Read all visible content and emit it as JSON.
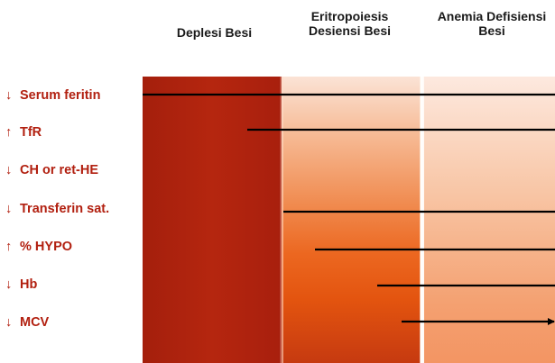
{
  "stages": [
    "Deplesi Besi",
    "Eritropoiesis\nDesiensi Besi",
    "Anemia Defisiensi\nBesi"
  ],
  "markers": [
    {
      "arrow": "↓",
      "label": "Serum feritin"
    },
    {
      "arrow": "↑",
      "label": "TfR"
    },
    {
      "arrow": "↓",
      "label": "CH or ret-HE"
    },
    {
      "arrow": "↓",
      "label": "Transferin sat."
    },
    {
      "arrow": "↑",
      "label": "% HYPO"
    },
    {
      "arrow": "↓",
      "label": "Hb"
    },
    {
      "arrow": "↓",
      "label": "MCV"
    }
  ],
  "colors": {
    "label_red": "#b22010",
    "stage1": "#b5260f",
    "stage2_mid": "#ec6720",
    "stage3": "#f39563",
    "line": "#000000"
  }
}
